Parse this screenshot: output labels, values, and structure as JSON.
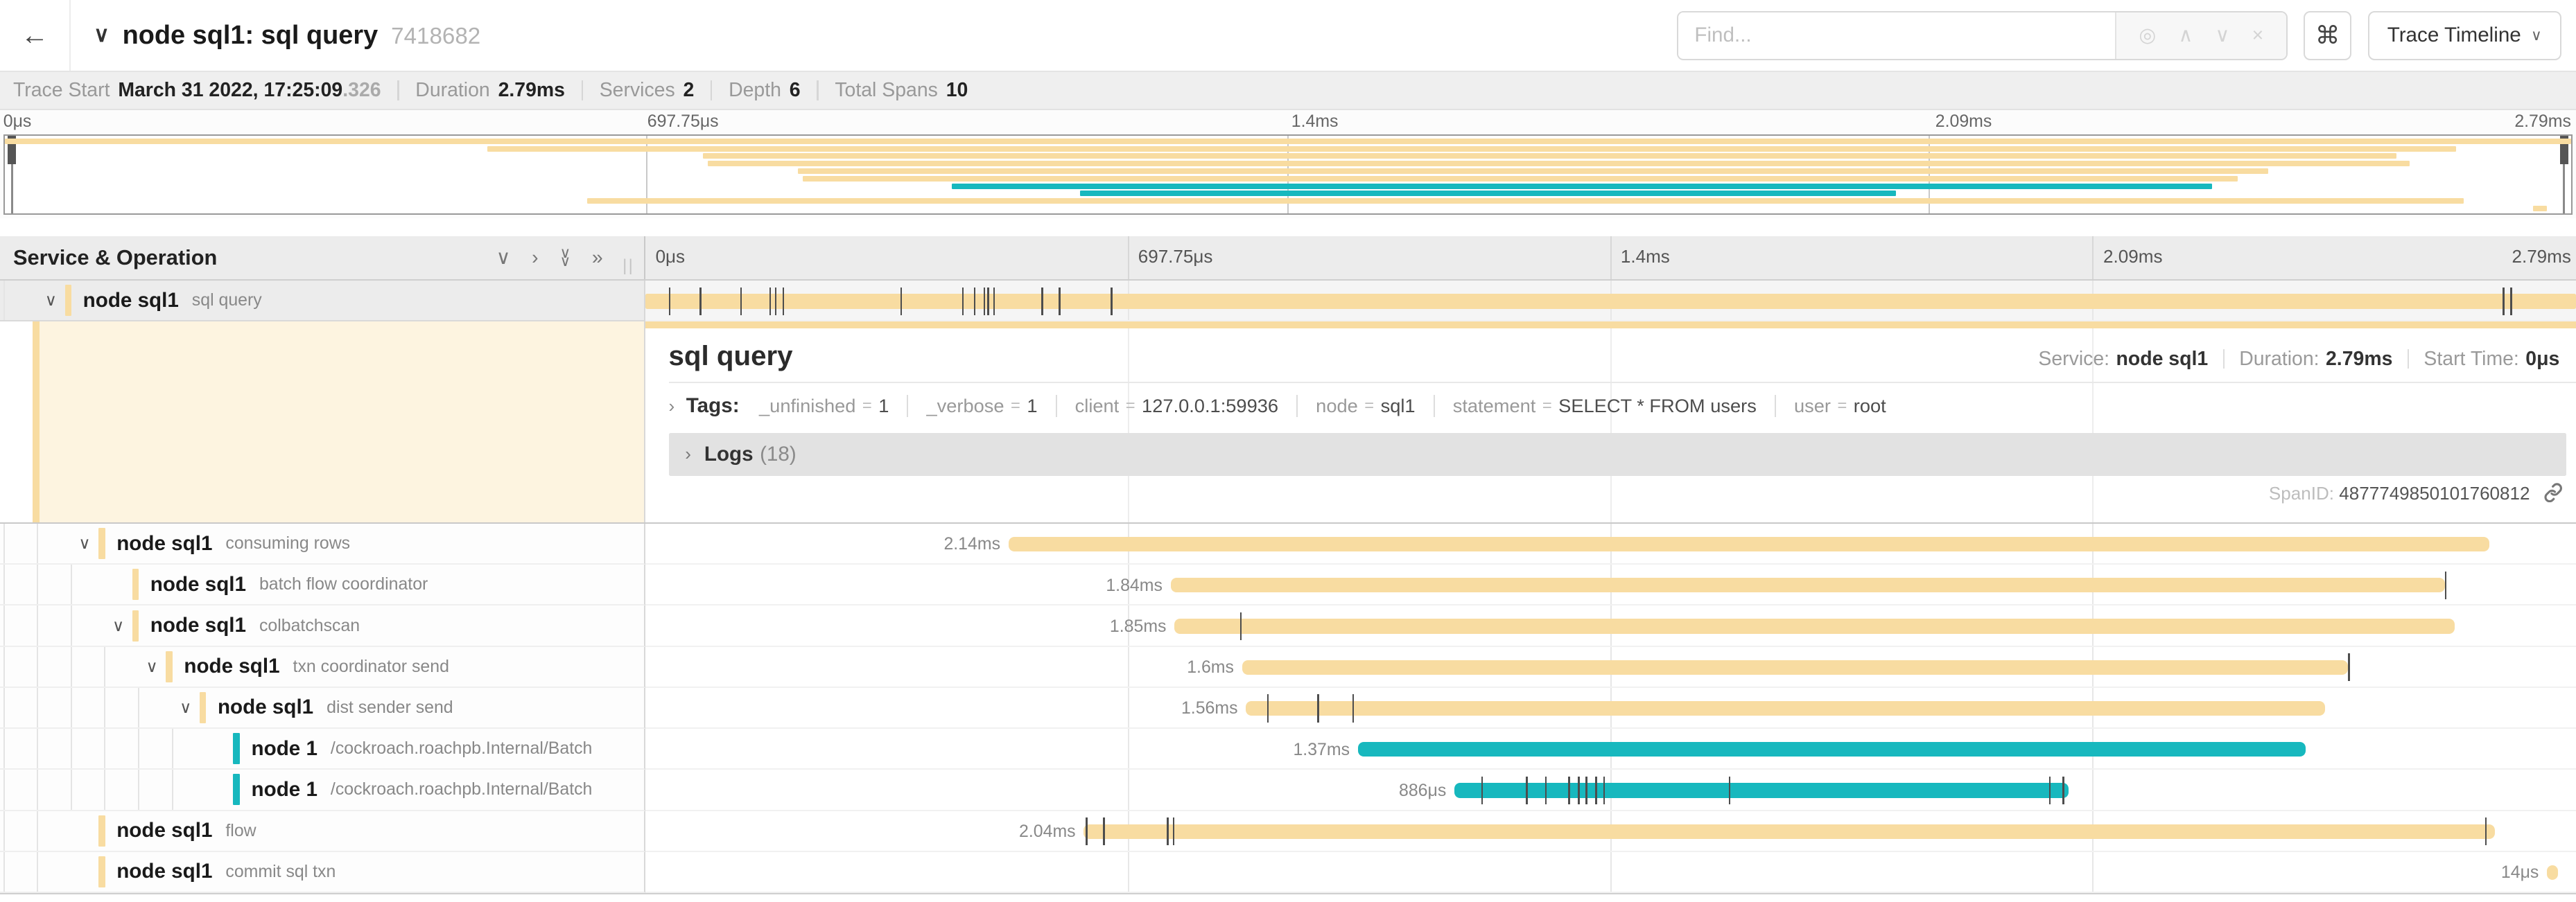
{
  "colors": {
    "yellow": "#F8DCA1",
    "teal": "#17B8BE",
    "selected_row": "#ececec",
    "detail_tint": "#fdf4e0"
  },
  "icons": {
    "back": "←",
    "chevron_down": "∨",
    "chevron_right": "›",
    "double_chevron_right": "»",
    "command": "⌘",
    "locate": "◎",
    "up": "∧",
    "down": "∨",
    "close": "×",
    "grip": "||"
  },
  "header": {
    "title": "node sql1: sql query",
    "trace_id": "7418682",
    "find_placeholder": "Find...",
    "trace_timeline_label": "Trace Timeline"
  },
  "trace_info": [
    {
      "label": "Trace Start",
      "value": "March 31 2022, 17:25:09",
      "suffix": ".326"
    },
    {
      "label": "Duration",
      "value": "2.79ms"
    },
    {
      "label": "Services",
      "value": "2"
    },
    {
      "label": "Depth",
      "value": "6"
    },
    {
      "label": "Total Spans",
      "value": "10"
    }
  ],
  "ruler": {
    "ticks": [
      "0μs",
      "697.75μs",
      "1.4ms",
      "2.09ms",
      "2.79ms"
    ],
    "positions": [
      0,
      25,
      50,
      75,
      100
    ]
  },
  "left_header": {
    "title": "Service & Operation"
  },
  "detail": {
    "title": "sql query",
    "service_label": "Service:",
    "service": "node sql1",
    "duration_label": "Duration:",
    "duration": "2.79ms",
    "start_label": "Start Time:",
    "start": "0μs",
    "tags_label": "Tags:",
    "tags": [
      {
        "key": "_unfinished",
        "value": "1"
      },
      {
        "key": "_verbose",
        "value": "1"
      },
      {
        "key": "client",
        "value": "127.0.0.1:59936"
      },
      {
        "key": "node",
        "value": "sql1"
      },
      {
        "key": "statement",
        "value": "SELECT * FROM users"
      },
      {
        "key": "user",
        "value": "root"
      }
    ],
    "logs_label": "Logs",
    "logs_count": "(18)",
    "spanid_label": "SpanID:",
    "spanid": "4877749850101760812"
  },
  "spans": [
    {
      "service": "node sql1",
      "operation": "sql query",
      "depth": 0,
      "color": "yellow",
      "start_pct": 0,
      "width_pct": 100,
      "duration_label": "",
      "expander": true,
      "selected": true,
      "ticks": [
        1.2,
        2.8,
        4.9,
        6.4,
        6.7,
        7.1,
        13.2,
        16.4,
        17.0,
        17.5,
        17.7,
        18.0,
        20.5,
        21.4,
        24.1,
        96.2,
        96.6
      ]
    },
    {
      "service": "node sql1",
      "operation": "consuming rows",
      "depth": 1,
      "color": "yellow",
      "start_pct": 18.8,
      "width_pct": 76.7,
      "duration_label": "2.14ms",
      "expander": true,
      "selected": false,
      "ticks": []
    },
    {
      "service": "node sql1",
      "operation": "batch flow coordinator",
      "depth": 2,
      "color": "yellow",
      "start_pct": 27.2,
      "width_pct": 66.0,
      "duration_label": "1.84ms",
      "expander": false,
      "selected": false,
      "ticks": [
        93.2
      ]
    },
    {
      "service": "node sql1",
      "operation": "colbatchscan",
      "depth": 2,
      "color": "yellow",
      "start_pct": 27.4,
      "width_pct": 66.3,
      "duration_label": "1.85ms",
      "expander": true,
      "selected": false,
      "ticks": [
        30.8
      ]
    },
    {
      "service": "node sql1",
      "operation": "txn coordinator send",
      "depth": 3,
      "color": "yellow",
      "start_pct": 30.9,
      "width_pct": 57.3,
      "duration_label": "1.6ms",
      "expander": true,
      "selected": false,
      "ticks": [
        88.2
      ]
    },
    {
      "service": "node sql1",
      "operation": "dist sender send",
      "depth": 4,
      "color": "yellow",
      "start_pct": 31.1,
      "width_pct": 55.9,
      "duration_label": "1.56ms",
      "expander": true,
      "selected": false,
      "ticks": [
        32.2,
        34.8,
        36.6
      ]
    },
    {
      "service": "node 1",
      "operation": "/cockroach.roachpb.Internal/Batch",
      "depth": 5,
      "color": "teal",
      "start_pct": 36.9,
      "width_pct": 49.1,
      "duration_label": "1.37ms",
      "expander": false,
      "selected": false,
      "ticks": []
    },
    {
      "service": "node 1",
      "operation": "/cockroach.roachpb.Internal/Batch",
      "depth": 5,
      "color": "teal",
      "start_pct": 41.9,
      "width_pct": 31.8,
      "duration_label": "886μs",
      "expander": false,
      "selected": false,
      "ticks": [
        43.3,
        45.6,
        46.6,
        47.8,
        48.3,
        48.7,
        49.2,
        49.6,
        56.1,
        72.7,
        73.4
      ]
    },
    {
      "service": "node sql1",
      "operation": "flow",
      "depth": 1,
      "color": "yellow",
      "start_pct": 22.7,
      "width_pct": 73.1,
      "duration_label": "2.04ms",
      "expander": false,
      "selected": false,
      "ticks": [
        22.8,
        23.7,
        27.0,
        27.3,
        95.3
      ]
    },
    {
      "service": "node sql1",
      "operation": "commit sql txn",
      "depth": 1,
      "color": "yellow",
      "start_pct": 98.5,
      "width_pct": 0.55,
      "duration_label": "14μs",
      "expander": false,
      "selected": false,
      "ticks": []
    }
  ]
}
